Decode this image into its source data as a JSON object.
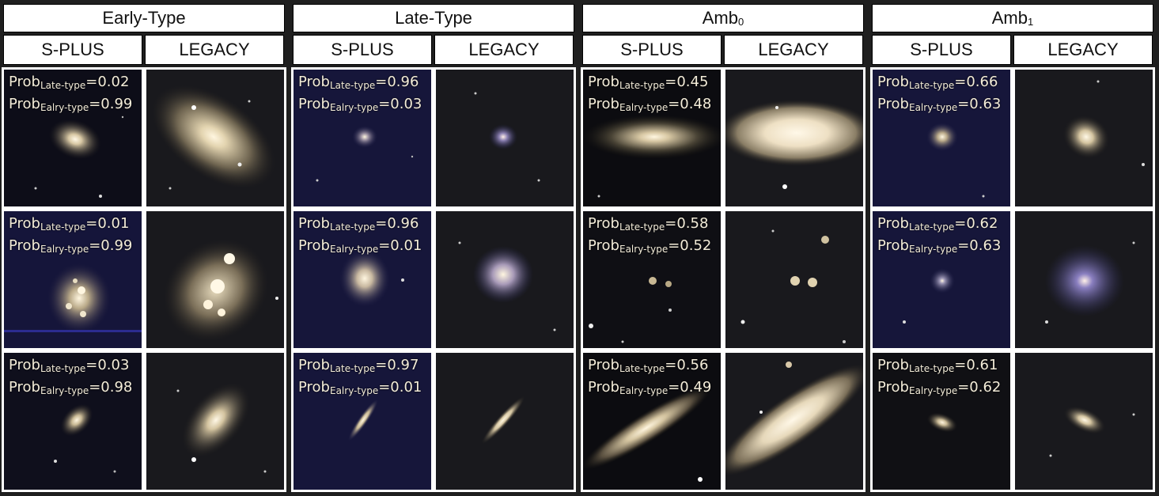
{
  "groups": [
    {
      "title": "Early-Type",
      "title_sub": "",
      "surveys": [
        "S-PLUS",
        "LEGACY"
      ],
      "rows": [
        {
          "prob_late_label": "Prob",
          "late_sub": "Late-type",
          "late": "=0.02",
          "prob_early_label": "Prob",
          "early_sub": "Ealry-type",
          "early": "=0.99"
        },
        {
          "prob_late_label": "Prob",
          "late_sub": "Late-type",
          "late": "=0.01",
          "prob_early_label": "Prob",
          "early_sub": "Ealry-type",
          "early": "=0.99"
        },
        {
          "prob_late_label": "Prob",
          "late_sub": "Late-type",
          "late": "=0.03",
          "prob_early_label": "Prob",
          "early_sub": "Ealry-type",
          "early": "=0.98"
        }
      ]
    },
    {
      "title": "Late-Type",
      "title_sub": "",
      "surveys": [
        "S-PLUS",
        "LEGACY"
      ],
      "rows": [
        {
          "prob_late_label": "Prob",
          "late_sub": "Late-type",
          "late": "=0.96",
          "prob_early_label": "Prob",
          "early_sub": "Ealry-type",
          "early": "=0.03"
        },
        {
          "prob_late_label": "Prob",
          "late_sub": "Late-type",
          "late": "=0.96",
          "prob_early_label": "Prob",
          "early_sub": "Ealry-type",
          "early": "=0.01"
        },
        {
          "prob_late_label": "Prob",
          "late_sub": "Late-type",
          "late": "=0.97",
          "prob_early_label": "Prob",
          "early_sub": "Ealry-type",
          "early": "=0.01"
        }
      ]
    },
    {
      "title": "Amb",
      "title_sub": "0",
      "surveys": [
        "S-PLUS",
        "LEGACY"
      ],
      "rows": [
        {
          "prob_late_label": "Prob",
          "late_sub": "Late-type",
          "late": "=0.45",
          "prob_early_label": "Prob",
          "early_sub": "Ealry-type",
          "early": "=0.48"
        },
        {
          "prob_late_label": "Prob",
          "late_sub": "Late-type",
          "late": "=0.58",
          "prob_early_label": "Prob",
          "early_sub": "Ealry-type",
          "early": "=0.52"
        },
        {
          "prob_late_label": "Prob",
          "late_sub": "Late-type",
          "late": "=0.56",
          "prob_early_label": "Prob",
          "early_sub": "Ealry-type",
          "early": "=0.49"
        }
      ]
    },
    {
      "title": "Amb",
      "title_sub": "1",
      "surveys": [
        "S-PLUS",
        "LEGACY"
      ],
      "rows": [
        {
          "prob_late_label": "Prob",
          "late_sub": "Late-type",
          "late": "=0.66",
          "prob_early_label": "Prob",
          "early_sub": "Ealry-type",
          "early": "=0.63"
        },
        {
          "prob_late_label": "Prob",
          "late_sub": "Late-type",
          "late": "=0.62",
          "prob_early_label": "Prob",
          "early_sub": "Ealry-type",
          "early": "=0.63"
        },
        {
          "prob_late_label": "Prob",
          "late_sub": "Late-type",
          "late": "=0.61",
          "prob_early_label": "Prob",
          "early_sub": "Ealry-type",
          "early": "=0.62"
        }
      ]
    }
  ],
  "colors": {
    "splus_blue_bg": "#16163a",
    "legacy_bg": "#18181c",
    "galaxy_core": "#fff6e0",
    "galaxy_halo": "#b8a98a",
    "text": "#f3ecd9"
  }
}
